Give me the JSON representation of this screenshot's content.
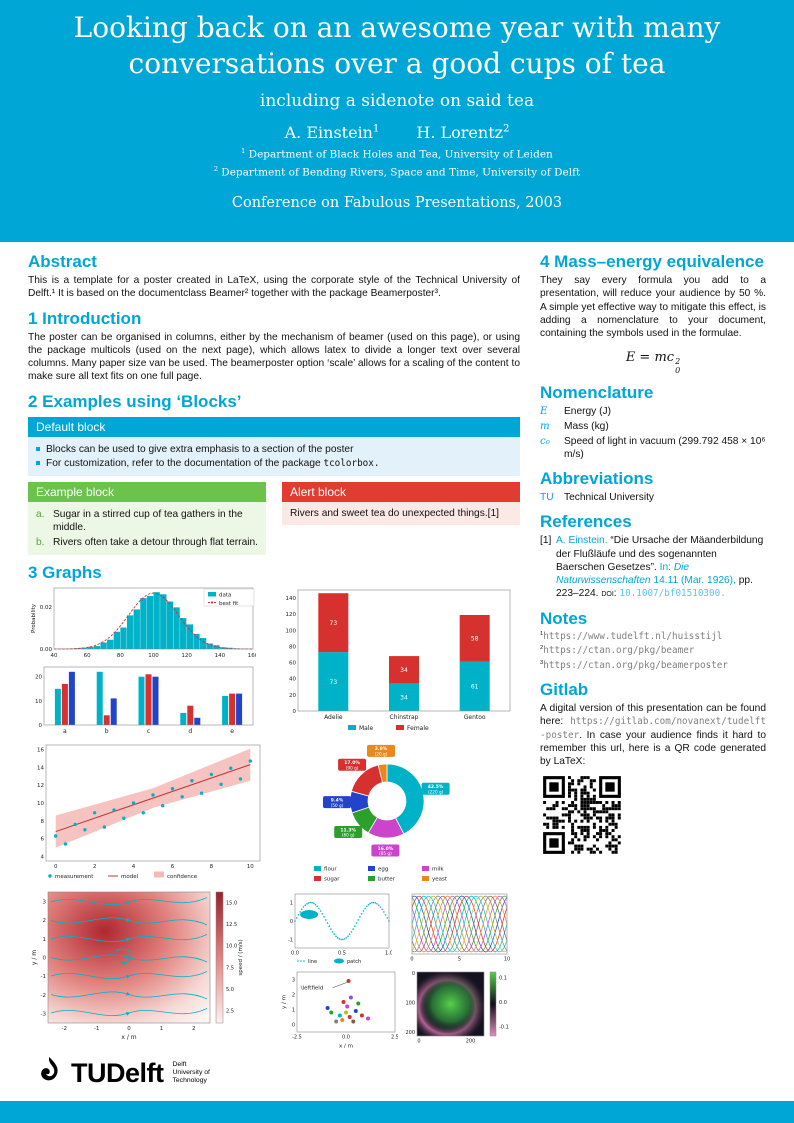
{
  "header": {
    "title": "Looking back on an awesome year with many conversations over a good cups of tea",
    "subtitle": "including a sidenote on said tea",
    "authors": [
      {
        "name": "A. Einstein",
        "sup": "1"
      },
      {
        "name": "H. Lorentz",
        "sup": "2"
      }
    ],
    "affiliations": [
      {
        "sup": "1",
        "text": "Department of Black Holes and Tea, University of Leiden"
      },
      {
        "sup": "2",
        "text": "Department of Bending Rivers, Space and Time, University of Delft"
      }
    ],
    "conference": "Conference on Fabulous Presentations, 2003"
  },
  "abstract": {
    "heading": "Abstract",
    "text": "This is a template for a poster created in LaTeX, using the corporate style of the Technical University of Delft.¹ It is based on the documentclass Beamer² together with the package Beamerposter³."
  },
  "introduction": {
    "heading": "1 Introduction",
    "text": "The poster can be organised in columns, either by the mechanism of beamer (used on this page), or using the package multicols (used on the next page), which allows latex to divide a longer text over several columns. Many paper size van be used. The beamerposter option ‘scale’ allows for a scaling of the content to make sure all text fits on one full page."
  },
  "examples": {
    "heading": "2 Examples using ‘Blocks’",
    "default_block": {
      "title": "Default block",
      "bullets": [
        {
          "text": "Blocks can be used to give extra emphasis to a section of the poster",
          "code": ""
        },
        {
          "text": "For customization, refer to the documentation of the package ",
          "code": "tcolorbox."
        }
      ]
    },
    "example_block": {
      "title": "Example block",
      "items": [
        {
          "label": "a.",
          "text": "Sugar in a stirred cup of tea gathers in the middle."
        },
        {
          "label": "b.",
          "text": "Rivers often take a detour through flat terrain."
        }
      ]
    },
    "alert_block": {
      "title": "Alert block",
      "text": "Rivers and sweet tea do unexpected things.[1]"
    }
  },
  "graphs": {
    "heading": "3 Graphs"
  },
  "mass_energy": {
    "heading": "4 Mass–energy equivalence",
    "text": "They say every formula you add to a presentation, will reduce your audience by 50 %. A simple yet effective way to mitigate this effect, is adding a nomenclature to your document, containing the symbols used in the formulae.",
    "formula": {
      "lhs": "E = mc",
      "sup": "2",
      "sub": "0"
    }
  },
  "nomenclature": {
    "heading": "Nomenclature",
    "items": [
      {
        "symbol": "E",
        "desc": "Energy (J)"
      },
      {
        "symbol": "m",
        "desc": "Mass (kg)"
      },
      {
        "symbol": "c₀",
        "desc": "Speed of light in vacuum (299.792 458 × 10⁶ m/s)"
      }
    ]
  },
  "abbreviations": {
    "heading": "Abbreviations",
    "items": [
      {
        "abbr": "TU",
        "desc": "Technical University"
      }
    ]
  },
  "references": {
    "heading": "References",
    "entries": [
      {
        "label": "[1]",
        "authors": "A. Einstein.",
        "title": "“Die Ursache der Mäanderbildung der Flußläufe und des sogenannten Baerschen Gesetzes”.",
        "in": "In:",
        "journal": "Die Naturwissenschaften",
        "detail": "14.11 (Mar. 1926),",
        "pages": "pp. 223–224.",
        "doi_label": "doi:",
        "doi": "10.1007/bf01510300."
      }
    ]
  },
  "notes": {
    "heading": "Notes",
    "items": [
      {
        "sup": "1",
        "url": "https://www.tudelft.nl/huisstijl"
      },
      {
        "sup": "2",
        "url": "https://ctan.org/pkg/beamer"
      },
      {
        "sup": "3",
        "url": "https://ctan.org/pkg/beamerposter"
      }
    ]
  },
  "gitlab": {
    "heading": "Gitlab",
    "text_before": "A digital version of this presentation can be found here: ",
    "url": "https://gitlab.com/novanext/tudelft-poster",
    "text_after": ". In case your audience finds it hard to remember this url, here is a QR code generated by LaTeX:"
  },
  "logo": {
    "tu": "TU",
    "delft": "Delft",
    "caption": [
      "Delft",
      "University of",
      "Technology"
    ]
  },
  "colors": {
    "brand_cyan": "#00A6D6",
    "block_green": "#6CC24A",
    "block_red": "#E03C31",
    "chart_teal": "#00B2C8",
    "chart_red": "#D6302F",
    "chart_blue": "#2244CC"
  },
  "charts": {
    "hist": {
      "type": "hist",
      "ylabel": "Probability",
      "xmin": 40,
      "xmax": 160,
      "ymax": 0.029,
      "xticks": [
        40,
        60,
        80,
        100,
        120,
        140,
        160
      ],
      "yticks": [
        {
          "v": 0,
          "label": "0.00"
        },
        {
          "v": 0.02,
          "label": "0.02"
        }
      ],
      "legend": [
        {
          "label": "data"
        },
        {
          "label": "best fit"
        }
      ],
      "bar_color": "#00B2C8",
      "line_color": "#D6302F",
      "gauss": {
        "mean": 100,
        "sd": 15,
        "amp": 0.0266
      },
      "bars": [
        0.0001,
        0.0002,
        0.0002,
        0.0004,
        0.0006,
        0.001,
        0.0014,
        0.0031,
        0.0044,
        0.0082,
        0.0102,
        0.016,
        0.0188,
        0.0242,
        0.0252,
        0.027,
        0.026,
        0.0226,
        0.0198,
        0.0147,
        0.0117,
        0.0072,
        0.0052,
        0.0026,
        0.0018,
        0.0008,
        0.0006,
        0.0003,
        0.0002,
        0.0001
      ]
    },
    "grouped_bar": {
      "type": "groupedBar",
      "categories": [
        "a",
        "b",
        "c",
        "d",
        "e"
      ],
      "yticks": [
        0,
        10,
        20
      ],
      "ymax": 24,
      "series": [
        {
          "color": "#00B2C8",
          "values": [
            15,
            22,
            20,
            5,
            12
          ]
        },
        {
          "color": "#D6302F",
          "values": [
            17,
            4,
            21,
            8,
            13
          ]
        },
        {
          "color": "#2244CC",
          "values": [
            22,
            11,
            20,
            3,
            13
          ]
        }
      ]
    },
    "stacked_bar": {
      "type": "stackedBar",
      "categories": [
        "Adelie",
        "Chinstrap",
        "Gentoo"
      ],
      "yticks": [
        0,
        20,
        40,
        60,
        80,
        100,
        120,
        140
      ],
      "ymax": 150,
      "series": [
        {
          "name": "Male",
          "color": "#00B2C8",
          "values": [
            73,
            34,
            61
          ]
        },
        {
          "name": "Female",
          "color": "#D6302F",
          "values": [
            73,
            34,
            58
          ]
        }
      ]
    },
    "scatter_fit": {
      "type": "scatterFit",
      "xrange": [
        -0.5,
        10.5
      ],
      "yrange": [
        3.5,
        16.5
      ],
      "xticks": [
        0,
        2,
        4,
        6,
        8,
        10
      ],
      "yticks": [
        4,
        6,
        8,
        10,
        12,
        14,
        16
      ],
      "legend": [
        {
          "label": "measurement"
        },
        {
          "label": "model"
        },
        {
          "label": "confidence"
        }
      ],
      "model": {
        "intercept": 6.8,
        "slope": 0.75
      },
      "band_end": 1.8,
      "band_mid": 1.1,
      "points": [
        [
          0,
          6.3
        ],
        [
          0.5,
          5.4
        ],
        [
          1,
          7.6
        ],
        [
          1.5,
          7.0
        ],
        [
          2,
          8.9
        ],
        [
          2.5,
          7.3
        ],
        [
          3,
          9.2
        ],
        [
          3.5,
          8.3
        ],
        [
          4,
          10.0
        ],
        [
          4.5,
          8.9
        ],
        [
          5,
          10.9
        ],
        [
          5.5,
          9.7
        ],
        [
          6,
          11.6
        ],
        [
          6.5,
          10.7
        ],
        [
          7,
          12.5
        ],
        [
          7.5,
          11.1
        ],
        [
          8,
          13.2
        ],
        [
          8.5,
          12.1
        ],
        [
          9,
          13.9
        ],
        [
          9.5,
          12.7
        ],
        [
          10,
          14.7
        ]
      ]
    },
    "donut": {
      "type": "donut",
      "slices": [
        {
          "label": "flour",
          "color": "#00B2C8",
          "pct": 42.5,
          "grams": "220 g"
        },
        {
          "label": "milk",
          "color": "#CC44CC",
          "pct": 16.0,
          "grams": "85 g"
        },
        {
          "label": "butter",
          "color": "#2CA02C",
          "pct": 11.3,
          "grams": "60 g"
        },
        {
          "label": "egg",
          "color": "#2244CC",
          "pct": 9.4,
          "grams": "50 g"
        },
        {
          "label": "sugar",
          "color": "#D6302F",
          "pct": 17.0,
          "grams": "90 g"
        },
        {
          "label": "yeast",
          "color": "#E8881F",
          "pct": 3.8,
          "grams": "20 g"
        }
      ],
      "legend_order": [
        "flour",
        "egg",
        "milk",
        "sugar",
        "butter",
        "yeast"
      ]
    },
    "stream": {
      "type": "stream",
      "xlabel": "x / m",
      "ylabel": "y / m",
      "xrange": [
        -2.5,
        2.5
      ],
      "yrange": [
        -3.5,
        3.5
      ],
      "xticks": [
        -2,
        -1,
        0,
        1,
        2
      ],
      "yticks": [
        -3,
        -2,
        -1,
        0,
        1,
        2,
        3
      ],
      "colorbar": {
        "label": "speed / (m/s)",
        "ticks": [
          "15.0",
          "12.5",
          "10.0",
          "7.5",
          "5.0",
          "2.5"
        ]
      }
    },
    "sine": {
      "type": "sine",
      "xticks": [
        "0.0",
        "0.5",
        "1.0"
      ],
      "yticks": [
        -1,
        0,
        1
      ],
      "legend": [
        {
          "label": "line"
        },
        {
          "label": "patch"
        }
      ]
    },
    "multilines": {
      "type": "multilines",
      "xticks": [
        0,
        5,
        10
      ],
      "colors": [
        "#00B2C8",
        "#D6302F",
        "#2244CC",
        "#2CA02C",
        "#CC44CC",
        "#E8881F",
        "#8C564B",
        "#7F7F7F",
        "#BCBD22",
        "#17BECF"
      ]
    },
    "scatter_cluster": {
      "type": "scatterCluster",
      "xlabel": "x / m",
      "ylabel": "y / m",
      "xrange": [
        -4,
        4
      ],
      "yrange": [
        -0.5,
        3.5
      ],
      "xticks": [
        "-2.5",
        "0.0",
        "2.5"
      ],
      "yticks": [
        0,
        1,
        2,
        3
      ],
      "annotation": "\\leftfield",
      "colors": [
        "#00B2C8",
        "#D6302F",
        "#2244CC",
        "#2CA02C",
        "#CC44CC",
        "#E8881F",
        "#8C564B",
        "#7F7F7F",
        "#BCBD22",
        "#8855DD"
      ],
      "points": [
        [
          0.2,
          2.9,
          1
        ],
        [
          -0.5,
          0.6,
          0
        ],
        [
          0.3,
          0.5,
          1
        ],
        [
          0.8,
          0.9,
          2
        ],
        [
          -1.2,
          0.8,
          3
        ],
        [
          0.1,
          1.2,
          4
        ],
        [
          -0.3,
          0.3,
          5
        ],
        [
          0.6,
          0.2,
          6
        ],
        [
          1.3,
          0.6,
          1
        ],
        [
          -0.8,
          0.2,
          7
        ],
        [
          0,
          0.8,
          8
        ],
        [
          1,
          1.4,
          3
        ],
        [
          -1.5,
          1.1,
          2
        ],
        [
          0.4,
          1.8,
          9
        ],
        [
          -0.2,
          1.5,
          1
        ],
        [
          1.8,
          0.4,
          4
        ]
      ]
    },
    "image_plot": {
      "type": "imagePlot",
      "xticks": [
        0,
        200
      ],
      "yticks": [
        0,
        100,
        200
      ],
      "colorbar": {
        "ticks": [
          "0.1",
          "0.0",
          "-0.1"
        ]
      }
    },
    "qr": {
      "type": "qr"
    }
  }
}
